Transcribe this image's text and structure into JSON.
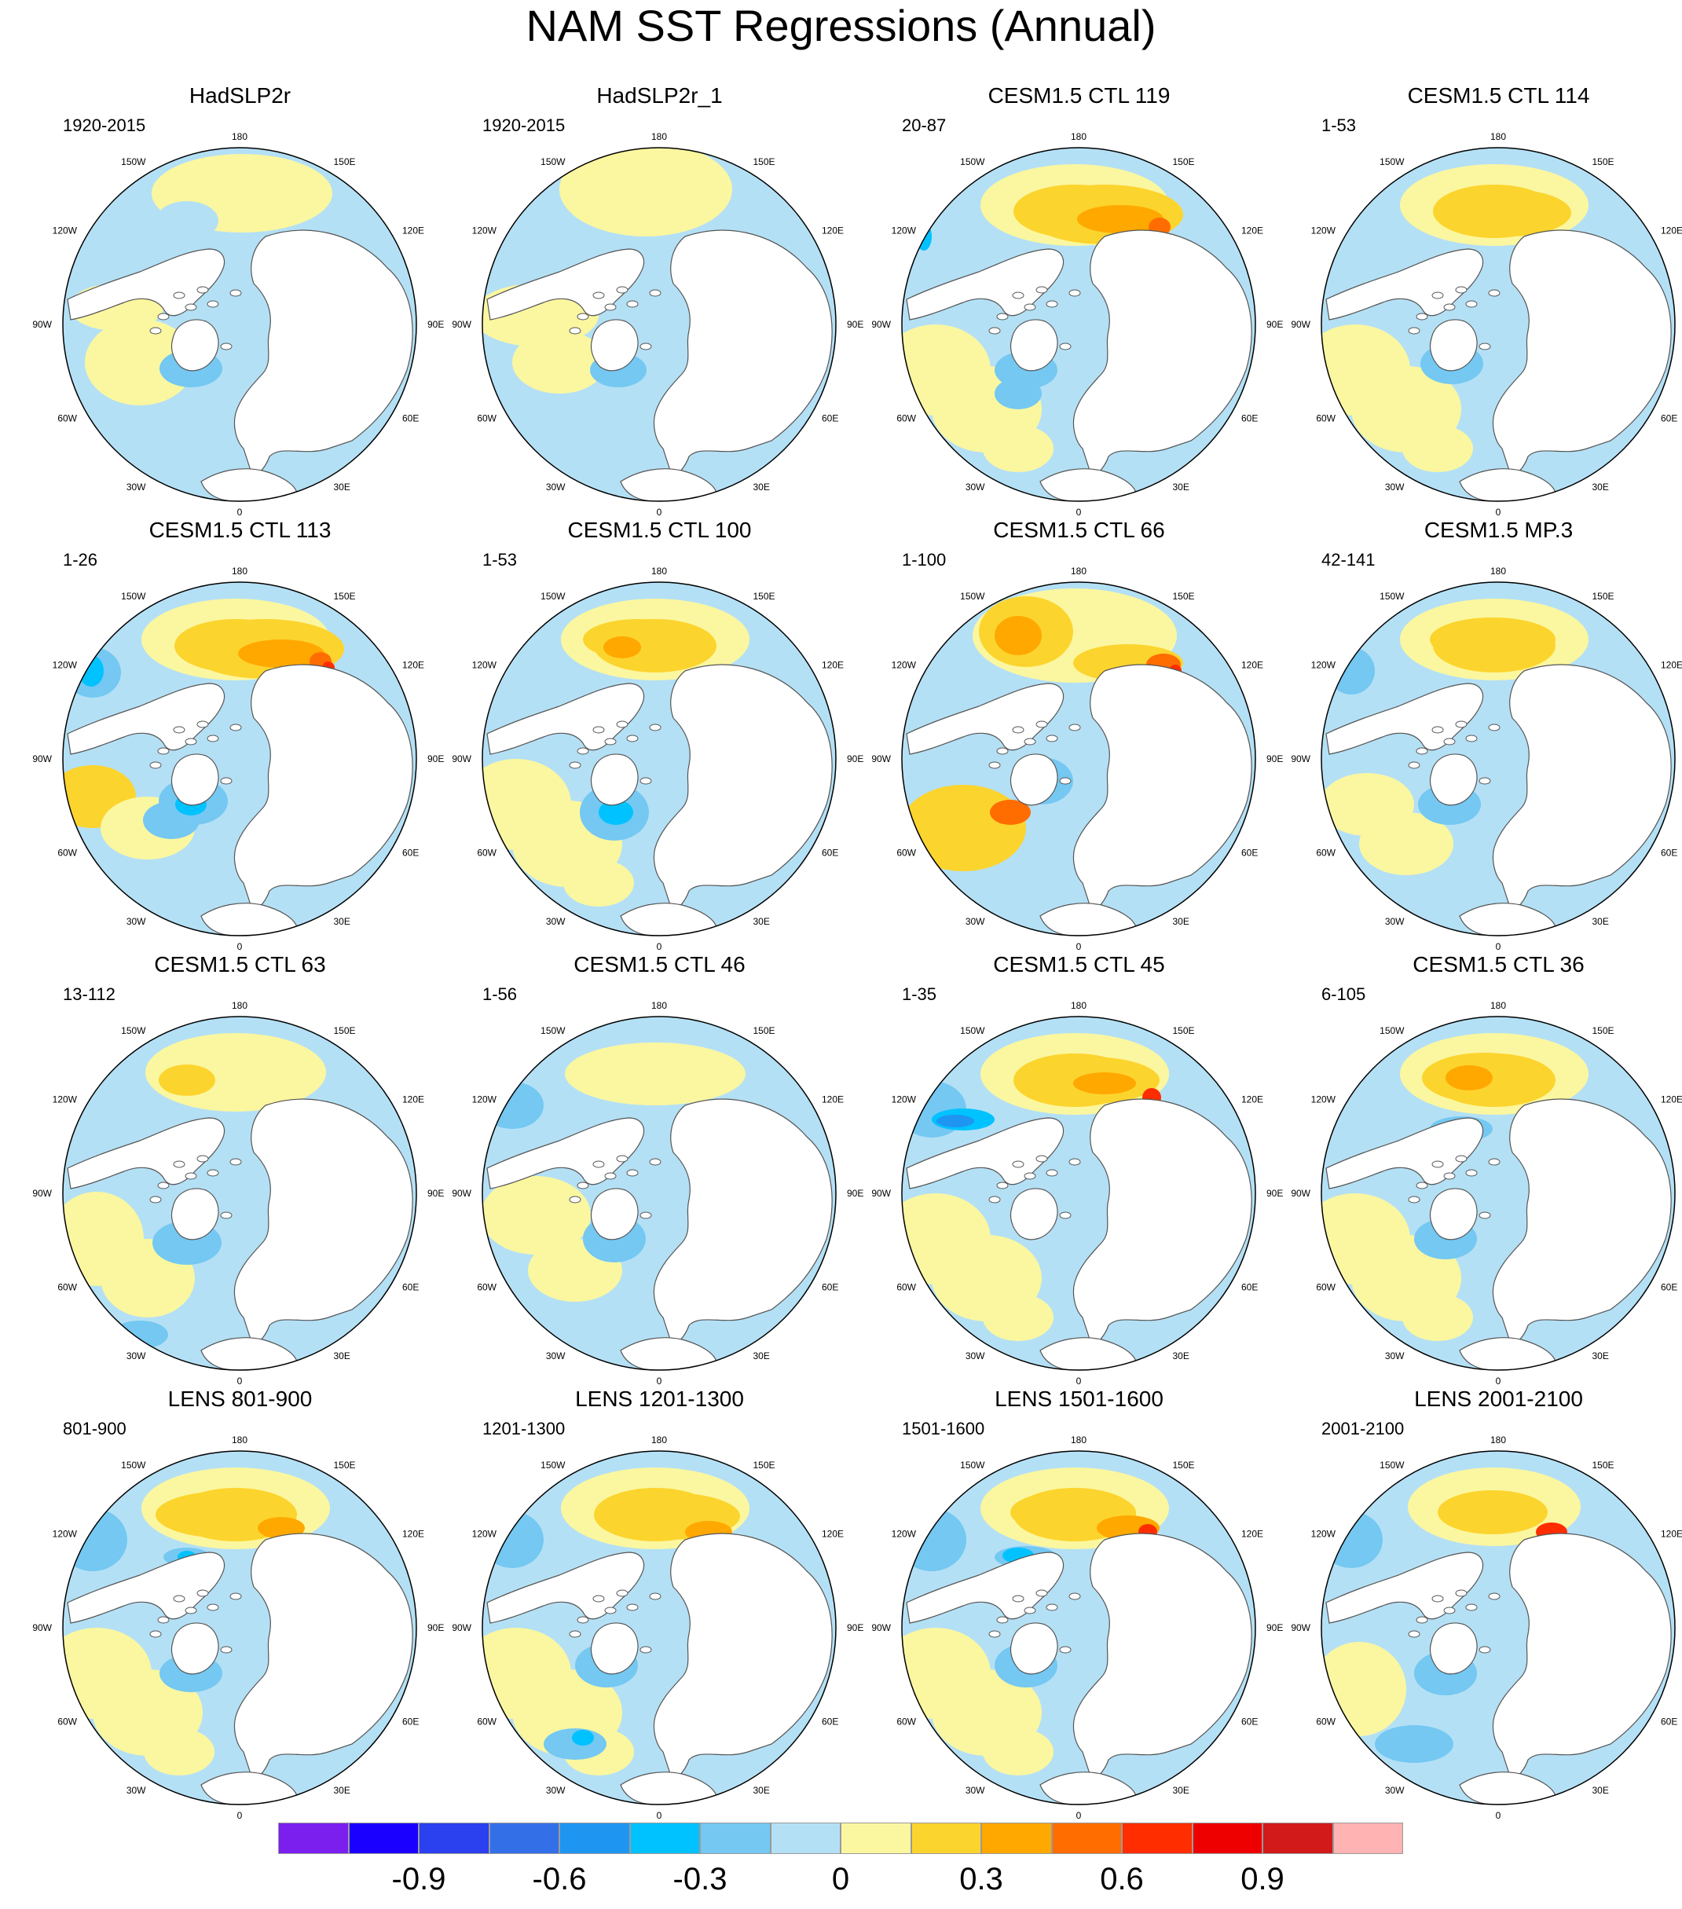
{
  "title": "NAM SST Regressions (Annual)",
  "longitude_labels": [
    "180",
    "150E",
    "120E",
    "90E",
    "60E",
    "30E",
    "0",
    "30W",
    "60W",
    "90W",
    "120W",
    "150W"
  ],
  "colorbar": {
    "colors": [
      "#7b1fef",
      "#1a00ff",
      "#2b40ee",
      "#3370e8",
      "#1f95f2",
      "#00c2ff",
      "#74c8f2",
      "#b4e0f5",
      "#fbf7a0",
      "#fcd42e",
      "#ffa800",
      "#ff6d00",
      "#ff2d00",
      "#ee0000",
      "#d21a1a",
      "#ffb3b3"
    ],
    "tick_values": [
      -0.9,
      -0.6,
      -0.3,
      0,
      0.3,
      0.6,
      0.9
    ],
    "tick_labels": [
      "-0.9",
      "-0.6",
      "-0.3",
      "0",
      "0.3",
      "0.6",
      "0.9"
    ],
    "step": 0.15
  },
  "panels": [
    {
      "title": "HadSLP2r",
      "period": "1920-2015"
    },
    {
      "title": "HadSLP2r_1",
      "period": "1920-2015"
    },
    {
      "title": "CESM1.5 CTL 119",
      "period": "20-87"
    },
    {
      "title": "CESM1.5 CTL 114",
      "period": "1-53"
    },
    {
      "title": "CESM1.5 CTL 113",
      "period": "1-26"
    },
    {
      "title": "CESM1.5 CTL 100",
      "period": "1-53"
    },
    {
      "title": "CESM1.5 CTL 66",
      "period": "1-100"
    },
    {
      "title": "CESM1.5 MP.3",
      "period": "42-141"
    },
    {
      "title": "CESM1.5 CTL 63",
      "period": "13-112"
    },
    {
      "title": "CESM1.5 CTL 46",
      "period": "1-56"
    },
    {
      "title": "CESM1.5 CTL 45",
      "period": "1-35"
    },
    {
      "title": "CESM1.5 CTL 36",
      "period": "6-105"
    },
    {
      "title": "LENS 801-900",
      "period": "801-900"
    },
    {
      "title": "LENS 1201-1300",
      "period": "1201-1300"
    },
    {
      "title": "LENS 1501-1600",
      "period": "1501-1600"
    },
    {
      "title": "LENS 2001-2100",
      "period": "2001-2100"
    }
  ]
}
